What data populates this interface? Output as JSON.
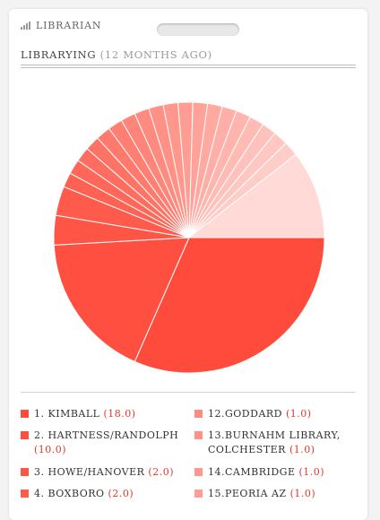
{
  "app": {
    "title": "LIBRARIAN",
    "icon": "bar-chart-icon"
  },
  "section": {
    "title": "LIBRARYING",
    "subtitle": "(12 MONTHS AGO)"
  },
  "colors": {
    "accent": "#e0392b",
    "slice_dark": "#ff4b3c",
    "slice_light": "#ffd7d3"
  },
  "chart_data": {
    "type": "pie",
    "title": "",
    "slices": [
      {
        "rank": "1.",
        "label": "KIMBALL",
        "value": 18.0,
        "value_text": "(18.0)",
        "color": "#ff4b3c"
      },
      {
        "rank": "2.",
        "label": "HARTNESS/RANDOLPH",
        "value": 10.0,
        "value_text": "(10.0)",
        "color": "#ff4f40"
      },
      {
        "rank": "3.",
        "label": "HOWE/HANOVER",
        "value": 2.0,
        "value_text": "(2.0)",
        "color": "#ff5546"
      },
      {
        "rank": "4.",
        "label": "BOXBORO",
        "value": 2.0,
        "value_text": "(2.0)",
        "color": "#ff5b4d"
      },
      {
        "rank": "",
        "label": "",
        "value": 1.0,
        "value_text": "",
        "color": "#ff6153"
      },
      {
        "rank": "",
        "label": "",
        "value": 1.0,
        "value_text": "",
        "color": "#ff6759"
      },
      {
        "rank": "",
        "label": "",
        "value": 1.0,
        "value_text": "",
        "color": "#ff6d60"
      },
      {
        "rank": "",
        "label": "",
        "value": 1.0,
        "value_text": "",
        "color": "#ff7366"
      },
      {
        "rank": "",
        "label": "",
        "value": 1.0,
        "value_text": "",
        "color": "#ff796d"
      },
      {
        "rank": "",
        "label": "",
        "value": 1.0,
        "value_text": "",
        "color": "#ff7f73"
      },
      {
        "rank": "",
        "label": "",
        "value": 1.0,
        "value_text": "",
        "color": "#ff857a"
      },
      {
        "rank": "12.",
        "label": "GODDARD",
        "value": 1.0,
        "value_text": "(1.0)",
        "color": "#ff8b80"
      },
      {
        "rank": "13.",
        "label": "BURNAHM LIBRARY, COLCHESTER",
        "value": 1.0,
        "value_text": "(1.0)",
        "color": "#ff9187"
      },
      {
        "rank": "14.",
        "label": "CAMBRIDGE",
        "value": 1.0,
        "value_text": "(1.0)",
        "color": "#ff978d"
      },
      {
        "rank": "15.",
        "label": "PEORIA AZ",
        "value": 1.0,
        "value_text": "(1.0)",
        "color": "#ff9d94"
      },
      {
        "rank": "",
        "label": "",
        "value": 1.0,
        "value_text": "",
        "color": "#ffa39a"
      },
      {
        "rank": "",
        "label": "",
        "value": 1.0,
        "value_text": "",
        "color": "#ffa9a1"
      },
      {
        "rank": "",
        "label": "",
        "value": 1.0,
        "value_text": "",
        "color": "#ffafa7"
      },
      {
        "rank": "",
        "label": "",
        "value": 1.0,
        "value_text": "",
        "color": "#ffb5ae"
      },
      {
        "rank": "",
        "label": "",
        "value": 1.0,
        "value_text": "",
        "color": "#ffbbb4"
      },
      {
        "rank": "",
        "label": "",
        "value": 1.0,
        "value_text": "",
        "color": "#ffc1bb"
      },
      {
        "rank": "",
        "label": "",
        "value": 1.0,
        "value_text": "",
        "color": "#ffc7c1"
      },
      {
        "rank": "",
        "label": "",
        "value": 1.0,
        "value_text": "",
        "color": "#ffcdc8"
      },
      {
        "rank": "",
        "label": "",
        "value": 6.0,
        "value_text": "",
        "color": "#ffdad6"
      }
    ],
    "legend_columns": [
      [
        0,
        1,
        2,
        3
      ],
      [
        11,
        12,
        13,
        14
      ]
    ]
  }
}
